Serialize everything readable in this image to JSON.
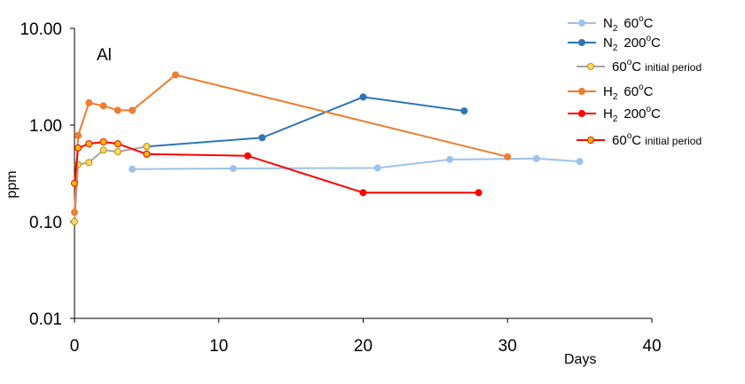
{
  "chart_data": {
    "type": "line",
    "panel_label": "Al",
    "xlabel": "Days",
    "ylabel": "ppm",
    "xlim": [
      0,
      40
    ],
    "ylim": [
      0.01,
      10
    ],
    "yscale": "log",
    "x_ticks": [
      "0",
      "10",
      "20",
      "30",
      "40"
    ],
    "x_tick_values": [
      0,
      10,
      20,
      30,
      40
    ],
    "y_ticks": [
      "10.00",
      "1.00",
      "0.10",
      "0.01"
    ],
    "y_tick_values": [
      10,
      1,
      0.1,
      0.01
    ],
    "grid": false,
    "legend_position": "top-right",
    "series": [
      {
        "name": "N2 60oC",
        "legend": {
          "main": "N",
          "sub": "2",
          "temp": "60",
          "sup": "o",
          "unit": "C",
          "tail": ""
        },
        "color": "#9dc3e6",
        "marker": "#9dc3e6",
        "marker_edge": "#9dc3e6",
        "x": [
          4,
          11,
          21,
          26,
          32,
          35
        ],
        "y": [
          0.35,
          0.355,
          0.36,
          0.44,
          0.45,
          0.42
        ]
      },
      {
        "name": "N2 200oC",
        "legend": {
          "main": "N",
          "sub": "2",
          "temp": "200",
          "sup": "o",
          "unit": "C",
          "tail": ""
        },
        "color": "#2e75b6",
        "marker": "#2e75b6",
        "marker_edge": "#2e75b6",
        "x": [
          5,
          13,
          20,
          27
        ],
        "y": [
          0.6,
          0.74,
          1.95,
          1.4
        ]
      },
      {
        "name": "60oC initial period",
        "legend": {
          "main": "",
          "sub": "",
          "temp": "60",
          "sup": "o",
          "unit": "C",
          "tail": "initial period"
        },
        "color": "#a5a5a5",
        "marker": "#ffd966",
        "marker_edge": "#bf9000",
        "x": [
          0,
          0.25,
          1,
          2,
          3,
          5
        ],
        "y": [
          0.1,
          0.39,
          0.41,
          0.55,
          0.53,
          0.6
        ]
      },
      {
        "name": "H2 60oC",
        "legend": {
          "main": "H",
          "sub": "2",
          "temp": "60",
          "sup": "o",
          "unit": "C",
          "tail": ""
        },
        "color": "#ed7d31",
        "marker": "#ed7d31",
        "marker_edge": "#ed7d31",
        "x": [
          0,
          0.25,
          1,
          2,
          3,
          4,
          7,
          30
        ],
        "y": [
          0.125,
          0.78,
          1.7,
          1.58,
          1.42,
          1.42,
          3.3,
          0.47
        ]
      },
      {
        "name": "H2 200oC",
        "legend": {
          "main": "H",
          "sub": "2",
          "temp": "200",
          "sup": "o",
          "unit": "C",
          "tail": ""
        },
        "color": "#ff0000",
        "marker": "#ff0000",
        "marker_edge": "#ff0000",
        "x": [
          5,
          12,
          20,
          28
        ],
        "y": [
          0.5,
          0.48,
          0.2,
          0.2
        ]
      },
      {
        "name": "60oC initial period",
        "legend": {
          "main": "",
          "sub": "",
          "temp": "60",
          "sup": "o",
          "unit": "C",
          "tail": "initial period"
        },
        "color": "#ff0000",
        "marker": "#ffc000",
        "marker_edge": "#ff0000",
        "x": [
          0,
          0.25,
          1,
          2,
          3,
          5
        ],
        "y": [
          0.25,
          0.58,
          0.64,
          0.67,
          0.64,
          0.5
        ]
      }
    ]
  }
}
